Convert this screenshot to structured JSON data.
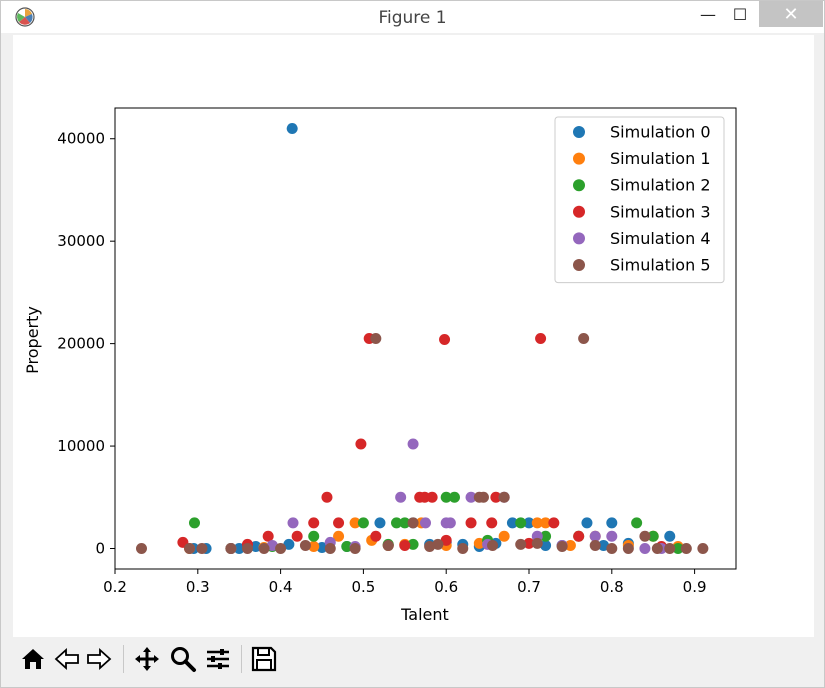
{
  "window": {
    "title": "Figure 1"
  },
  "window_controls": {
    "minimize": "—",
    "maximize": "☐",
    "close": "✕"
  },
  "toolbar": [
    "home-icon",
    "back-icon",
    "forward-icon",
    "pan-icon",
    "zoom-icon",
    "configure-subplots-icon",
    "save-icon"
  ],
  "chart_data": {
    "type": "scatter",
    "title": "",
    "xlabel": "Talent",
    "ylabel": "Property",
    "xlim": [
      0.2,
      0.95
    ],
    "ylim": [
      -2000,
      43000
    ],
    "xticks": [
      "0.2",
      "0.3",
      "0.4",
      "0.5",
      "0.6",
      "0.7",
      "0.8",
      "0.9"
    ],
    "yticks": [
      "0",
      "10000",
      "20000",
      "30000",
      "40000"
    ],
    "legend_position": "upper-right",
    "series": [
      {
        "name": "Simulation 0",
        "color": "#1f77b4",
        "x": [
          0.414,
          0.295,
          0.31,
          0.37,
          0.41,
          0.52,
          0.53,
          0.56,
          0.6,
          0.62,
          0.66,
          0.68,
          0.7,
          0.72,
          0.74,
          0.77,
          0.79,
          0.8,
          0.82,
          0.87,
          0.35,
          0.45,
          0.48,
          0.58,
          0.64
        ],
        "y": [
          41000,
          0,
          0,
          200,
          400,
          2500,
          300,
          2500,
          600,
          400,
          500,
          2500,
          2500,
          300,
          300,
          2500,
          300,
          2500,
          500,
          1200,
          0,
          100,
          200,
          400,
          200
        ]
      },
      {
        "name": "Simulation 1",
        "color": "#ff7f0e",
        "x": [
          0.29,
          0.34,
          0.38,
          0.44,
          0.47,
          0.49,
          0.51,
          0.53,
          0.57,
          0.6,
          0.64,
          0.67,
          0.71,
          0.72,
          0.75,
          0.78,
          0.82,
          0.85,
          0.88,
          0.55
        ],
        "y": [
          0,
          0,
          100,
          200,
          1200,
          2500,
          800,
          300,
          2500,
          300,
          500,
          1200,
          2500,
          2500,
          300,
          1200,
          300,
          1200,
          200,
          400
        ]
      },
      {
        "name": "Simulation 2",
        "color": "#2ca02c",
        "x": [
          0.296,
          0.34,
          0.39,
          0.44,
          0.48,
          0.5,
          0.53,
          0.54,
          0.55,
          0.56,
          0.6,
          0.61,
          0.65,
          0.69,
          0.72,
          0.76,
          0.83,
          0.85,
          0.88
        ],
        "y": [
          2500,
          0,
          200,
          1200,
          200,
          2500,
          400,
          2500,
          2500,
          400,
          5000,
          5000,
          800,
          2500,
          1200,
          1200,
          2500,
          1200,
          0
        ]
      },
      {
        "name": "Simulation 3",
        "color": "#d62728",
        "x": [
          0.282,
          0.36,
          0.385,
          0.42,
          0.44,
          0.456,
          0.47,
          0.497,
          0.507,
          0.515,
          0.55,
          0.568,
          0.574,
          0.583,
          0.598,
          0.6,
          0.63,
          0.655,
          0.66,
          0.7,
          0.714,
          0.73,
          0.76,
          0.86
        ],
        "y": [
          600,
          400,
          1200,
          1200,
          2500,
          5000,
          2500,
          10200,
          20500,
          1200,
          300,
          5000,
          5000,
          5000,
          20400,
          800,
          2500,
          2500,
          5000,
          500,
          20500,
          2500,
          1200,
          200
        ]
      },
      {
        "name": "Simulation 4",
        "color": "#9467bd",
        "x": [
          0.34,
          0.39,
          0.415,
          0.46,
          0.49,
          0.545,
          0.56,
          0.575,
          0.6,
          0.605,
          0.63,
          0.65,
          0.67,
          0.71,
          0.74,
          0.78,
          0.8,
          0.84,
          0.86
        ],
        "y": [
          0,
          300,
          2500,
          600,
          200,
          5000,
          10200,
          2500,
          2500,
          2500,
          5000,
          400,
          5000,
          1200,
          300,
          1200,
          1200,
          0,
          0
        ]
      },
      {
        "name": "Simulation 5",
        "color": "#8c564b",
        "x": [
          0.232,
          0.29,
          0.305,
          0.34,
          0.36,
          0.38,
          0.4,
          0.43,
          0.46,
          0.49,
          0.515,
          0.53,
          0.56,
          0.58,
          0.59,
          0.62,
          0.64,
          0.645,
          0.656,
          0.67,
          0.69,
          0.71,
          0.74,
          0.766,
          0.78,
          0.8,
          0.82,
          0.84,
          0.855,
          0.87,
          0.89,
          0.91
        ],
        "y": [
          0,
          0,
          0,
          0,
          0,
          0,
          0,
          300,
          0,
          0,
          20500,
          300,
          2500,
          200,
          400,
          0,
          5000,
          5000,
          300,
          5000,
          400,
          500,
          200,
          20500,
          300,
          0,
          0,
          1200,
          0,
          0,
          0,
          0
        ]
      }
    ]
  }
}
